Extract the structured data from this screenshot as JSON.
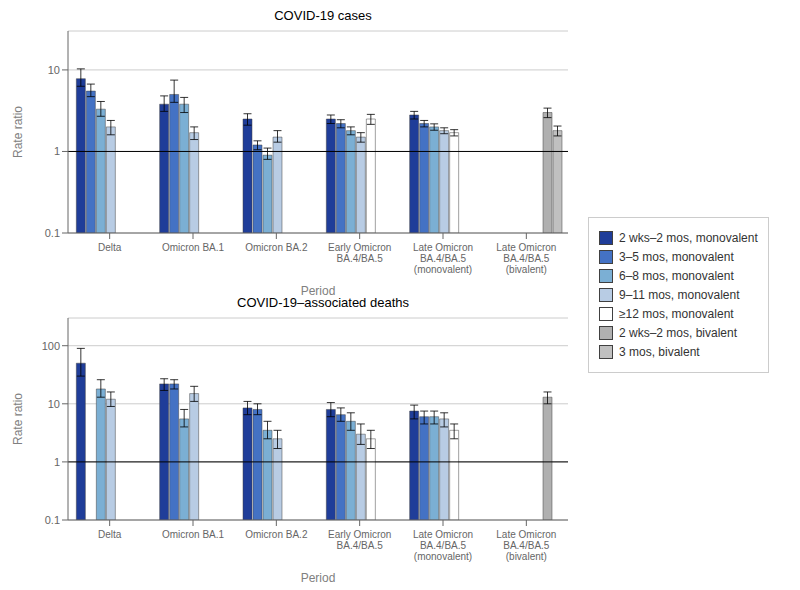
{
  "chart_data": [
    {
      "type": "bar",
      "title": "COVID-19 cases",
      "xlabel": "Period",
      "ylabel": "Rate ratio",
      "categories": [
        "Delta",
        "Omicron BA.1",
        "Omicron BA.2",
        "Early Omicron\nBA.4/BA.5",
        "Late Omicron\nBA.4/BA.5\n(monovalent)",
        "Late Omicron\nBA.4/BA.5\n(bivalent)"
      ],
      "series": [
        {
          "name": "2 wks–2 mos, monovalent",
          "color": "#1f3d99",
          "values": [
            7.8,
            3.8,
            2.5,
            2.5,
            2.8,
            null
          ],
          "errors": [
            [
              1.5,
              2.5
            ],
            [
              0.7,
              1.0
            ],
            [
              0.4,
              0.4
            ],
            [
              0.3,
              0.3
            ],
            [
              0.3,
              0.3
            ],
            null
          ]
        },
        {
          "name": "3–5 mos, monovalent",
          "color": "#4472c4",
          "values": [
            5.5,
            5.0,
            1.2,
            2.2,
            2.2,
            null
          ],
          "errors": [
            [
              0.8,
              1.2
            ],
            [
              1.0,
              2.5
            ],
            [
              0.15,
              0.15
            ],
            [
              0.25,
              0.25
            ],
            [
              0.2,
              0.2
            ],
            null
          ]
        },
        {
          "name": "6–8 mos, monovalent",
          "color": "#7bafd4",
          "values": [
            3.3,
            3.8,
            0.9,
            1.8,
            2.0,
            null
          ],
          "errors": [
            [
              0.6,
              0.8
            ],
            [
              0.8,
              0.8
            ],
            [
              0.1,
              0.2
            ],
            [
              0.2,
              0.2
            ],
            [
              0.18,
              0.18
            ],
            null
          ]
        },
        {
          "name": "9–11 mos, monovalent",
          "color": "#b8cce4",
          "values": [
            2.0,
            1.7,
            1.5,
            1.5,
            1.8,
            null
          ],
          "errors": [
            [
              0.4,
              0.4
            ],
            [
              0.3,
              0.3
            ],
            [
              0.2,
              0.3
            ],
            [
              0.2,
              0.2
            ],
            [
              0.15,
              0.15
            ],
            null
          ]
        },
        {
          "name": "≥12 mos, monovalent",
          "color": "#ffffff",
          "values": [
            null,
            null,
            null,
            2.5,
            1.7,
            null
          ],
          "errors": [
            null,
            null,
            null,
            [
              0.35,
              0.35
            ],
            [
              0.15,
              0.15
            ],
            null
          ]
        },
        {
          "name": "2 wks–2 mos, bivalent",
          "color": "#b0b0b0",
          "values": [
            null,
            null,
            null,
            null,
            null,
            3.0
          ],
          "errors": [
            null,
            null,
            null,
            null,
            null,
            [
              0.4,
              0.4
            ]
          ]
        },
        {
          "name": "3 mos, bivalent",
          "color": "#c0c0c0",
          "values": [
            null,
            null,
            null,
            null,
            null,
            1.8
          ],
          "errors": [
            null,
            null,
            null,
            null,
            null,
            [
              0.25,
              0.25
            ]
          ]
        }
      ],
      "log": "y",
      "ylim": [
        0.1,
        30
      ],
      "yticks": [
        0.1,
        1,
        10
      ],
      "grid": true,
      "legend": "right",
      "reference_y": 1
    },
    {
      "type": "bar",
      "title": "COVID-19–associated deaths",
      "xlabel": "Period",
      "ylabel": "Rate ratio",
      "categories": [
        "Delta",
        "Omicron BA.1",
        "Omicron BA.2",
        "Early Omicron\nBA.4/BA.5",
        "Late Omicron\nBA.4/BA.5\n(monovalent)",
        "Late Omicron\nBA.4/BA.5\n(bivalent)"
      ],
      "series": [
        {
          "name": "2 wks–2 mos, monovalent",
          "color": "#1f3d99",
          "values": [
            50,
            22,
            8.5,
            8.0,
            7.5,
            null
          ],
          "errors": [
            [
              20,
              40
            ],
            [
              5,
              5
            ],
            [
              2.0,
              2.5
            ],
            [
              2.0,
              2.5
            ],
            [
              2.0,
              2.0
            ],
            null
          ]
        },
        {
          "name": "3–5 mos, monovalent",
          "color": "#4472c4",
          "values": [
            null,
            22,
            8.0,
            6.5,
            6.0,
            null
          ],
          "errors": [
            null,
            [
              4,
              4
            ],
            [
              1.5,
              2.0
            ],
            [
              1.5,
              2.0
            ],
            [
              1.5,
              1.5
            ],
            null
          ]
        },
        {
          "name": "6–8 mos, monovalent",
          "color": "#7bafd4",
          "values": [
            18,
            5.5,
            3.5,
            5.0,
            6.0,
            null
          ],
          "errors": [
            [
              5,
              8
            ],
            [
              1.5,
              2.5
            ],
            [
              1.0,
              1.5
            ],
            [
              1.5,
              2.0
            ],
            [
              1.5,
              1.5
            ],
            null
          ]
        },
        {
          "name": "9–11 mos, monovalent",
          "color": "#b8cce4",
          "values": [
            12,
            15,
            2.5,
            3.0,
            5.5,
            null
          ],
          "errors": [
            [
              3,
              4
            ],
            [
              4,
              5
            ],
            [
              0.8,
              1.0
            ],
            [
              1.0,
              1.5
            ],
            [
              1.5,
              1.5
            ],
            null
          ]
        },
        {
          "name": "≥12 mos, monovalent",
          "color": "#ffffff",
          "values": [
            null,
            null,
            null,
            2.5,
            3.5,
            null
          ],
          "errors": [
            null,
            null,
            null,
            [
              0.8,
              1.0
            ],
            [
              1.0,
              1.0
            ],
            null
          ]
        },
        {
          "name": "2 wks–2 mos, bivalent",
          "color": "#b0b0b0",
          "values": [
            null,
            null,
            null,
            null,
            null,
            13
          ],
          "errors": [
            null,
            null,
            null,
            null,
            null,
            [
              3,
              3
            ]
          ]
        },
        {
          "name": "3 mos, bivalent",
          "color": "#c0c0c0",
          "values": [
            null,
            null,
            null,
            null,
            null,
            null
          ],
          "errors": [
            null,
            null,
            null,
            null,
            null,
            null
          ]
        }
      ],
      "log": "y",
      "ylim": [
        0.1,
        300
      ],
      "yticks": [
        0.1,
        1,
        10,
        100
      ],
      "grid": true,
      "reference_y": 1
    }
  ]
}
